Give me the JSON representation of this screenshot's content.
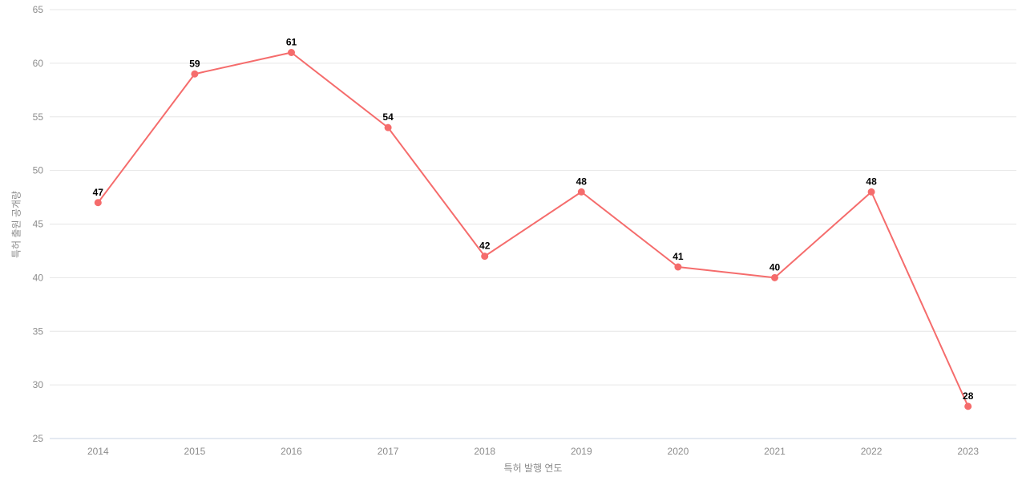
{
  "chart_data": {
    "type": "line",
    "title": "",
    "xlabel": "특허 발행 연도",
    "ylabel": "특허 출원 공개량",
    "categories": [
      "2014",
      "2015",
      "2016",
      "2017",
      "2018",
      "2019",
      "2020",
      "2021",
      "2022",
      "2023"
    ],
    "values": [
      47,
      59,
      61,
      54,
      42,
      48,
      41,
      40,
      48,
      28
    ],
    "ylim": [
      25,
      65
    ],
    "ytick_step": 5,
    "yticks": [
      25,
      30,
      35,
      40,
      45,
      50,
      55,
      60,
      65
    ],
    "grid": true,
    "legend_position": "none",
    "show_point_labels": true,
    "colors": {
      "line": "#f56c6c",
      "point": "#f56c6c",
      "grid": "#e6e6e6",
      "axis_line": "#c9d4e6",
      "tick_label": "#8c8c8c",
      "axis_name": "#8c8c8c",
      "value_label": "#000000",
      "background": "#ffffff"
    }
  }
}
